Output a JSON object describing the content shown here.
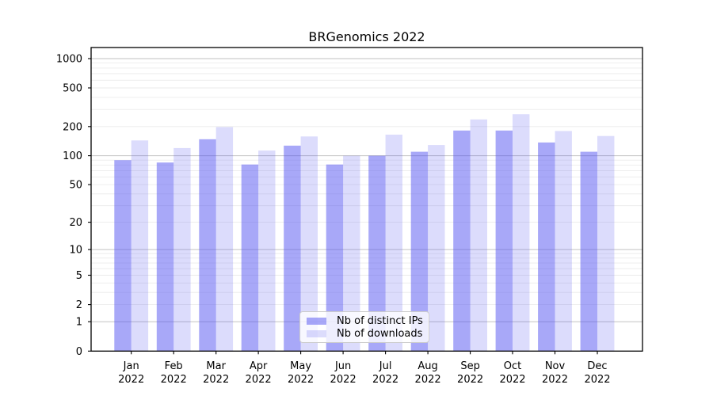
{
  "chart_data": {
    "type": "bar",
    "title": "BRGenomics 2022",
    "yscale": "log10(value+1) (symlog-like, 0 at baseline)",
    "categories": [
      "Jan 2022",
      "Feb 2022",
      "Mar 2022",
      "Apr 2022",
      "May 2022",
      "Jun 2022",
      "Jul 2022",
      "Aug 2022",
      "Sep 2022",
      "Oct 2022",
      "Nov 2022",
      "Dec 2022"
    ],
    "series": [
      {
        "name": "Nb of distinct IPs",
        "values": [
          90,
          85,
          148,
          81,
          127,
          81,
          100,
          110,
          182,
          182,
          137,
          110
        ]
      },
      {
        "name": "Nb of downloads",
        "values": [
          144,
          120,
          198,
          113,
          158,
          100,
          165,
          129,
          237,
          268,
          180,
          160
        ]
      }
    ],
    "ytick_labels": [
      "0",
      "1",
      "2",
      "5",
      "10",
      "20",
      "50",
      "100",
      "200",
      "500",
      "1000"
    ],
    "ytick_values": [
      0,
      1,
      2,
      5,
      10,
      20,
      50,
      100,
      200,
      500,
      1000
    ],
    "ylim": [
      0,
      1300
    ],
    "xlabel": "",
    "ylabel": "",
    "legend_position": "lower center",
    "grid": "horizontal minor + major (log decades)"
  },
  "colors": {
    "bar_base": "#5252f2",
    "series_alpha": [
      0.5,
      0.2
    ],
    "grid_major": "#c2c2c2",
    "grid_minor": "#ebebeb",
    "axis": "#000000",
    "legend_border": "#cccccc",
    "background": "#ffffff"
  }
}
